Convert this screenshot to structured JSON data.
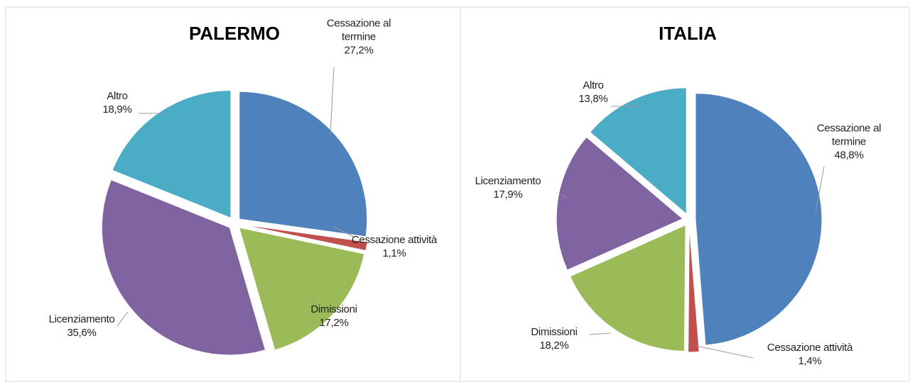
{
  "chart_data": [
    {
      "type": "pie",
      "title": "PALERMO",
      "categories": [
        "Cessazione al termine",
        "Cessazione attività",
        "Dimissioni",
        "Licenziamento",
        "Altro"
      ],
      "values": [
        27.2,
        1.1,
        17.2,
        35.6,
        18.9
      ],
      "value_labels": [
        "27,2%",
        "1,1%",
        "17,2%",
        "35,6%",
        "18,9%"
      ],
      "colors": [
        "#4f81bd",
        "#c0504d",
        "#9bbb59",
        "#8064a2",
        "#4bacc6"
      ]
    },
    {
      "type": "pie",
      "title": "ITALIA",
      "categories": [
        "Cessazione al termine",
        "Cessazione attività",
        "Dimissioni",
        "Licenziamento",
        "Altro"
      ],
      "values": [
        48.8,
        1.4,
        18.2,
        17.9,
        13.8
      ],
      "value_labels": [
        "48,8%",
        "1,4%",
        "18,2%",
        "17,9%",
        "13,8%"
      ],
      "colors": [
        "#4f81bd",
        "#c0504d",
        "#9bbb59",
        "#8064a2",
        "#4bacc6"
      ]
    }
  ]
}
